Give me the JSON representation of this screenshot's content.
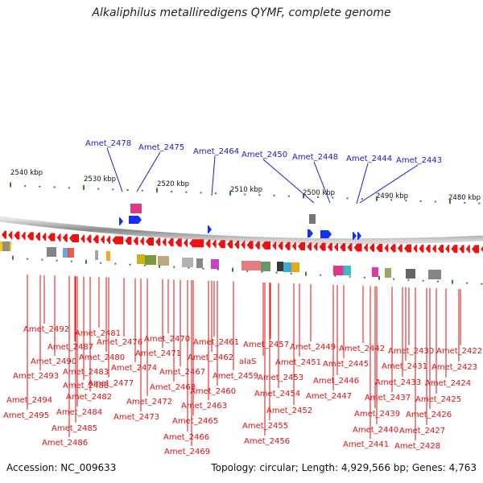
{
  "title": "Alkaliphilus metalliredigens QYMF, complete genome",
  "footer": {
    "accession": "Accession: NC_009633",
    "stats": "Topology: circular; Length: 4,929,566 bp; Genes: 4,763"
  },
  "colors": {
    "forward_label": "#1a1acc",
    "reverse_label": "#dd1111",
    "forward_gene": "#1133ee",
    "reverse_gene": "#ee1111",
    "tick": "#2a8a2a",
    "backbone": "#8a8a8a"
  },
  "kbp_labels": [
    "2540 kbp",
    "2530 kbp",
    "2520 kbp",
    "2510 kbp",
    "2500 kbp",
    "2490 kbp",
    "2480 kbp"
  ],
  "forward_labels": [
    "Amet_2478",
    "Amet_2475",
    "Amet_2464",
    "Amet_2450",
    "Amet_2448",
    "Amet_2444",
    "Amet_2443"
  ],
  "reverse_labels": [
    "Amet_2492",
    "Amet_2490",
    "Amet_2493",
    "Amet_2494",
    "Amet_2495",
    "Amet_2487",
    "Amet_2488",
    "Amet_2485",
    "Amet_2486",
    "Amet_2484",
    "Amet_2481",
    "Amet_2480",
    "Amet_2483",
    "Amet_2482",
    "Amet_2476",
    "Amet_2477",
    "Amet_2474",
    "Amet_2473",
    "Amet_2472",
    "Amet_2470",
    "Amet_2471",
    "Amet_2467",
    "Amet_2468",
    "Amet_2469",
    "Amet_2461",
    "Amet_2462",
    "Amet_2463",
    "Amet_2465",
    "Amet_2466",
    "Amet_2460",
    "Amet_2459",
    "alaS",
    "Amet_2457",
    "Amet_2453",
    "Amet_2454",
    "Amet_2455",
    "Amet_2456",
    "Amet_2451",
    "Amet_2452",
    "Amet_2449",
    "Amet_2446",
    "Amet_2447",
    "Amet_2445",
    "Amet_2442",
    "Amet_2437",
    "Amet_2439",
    "Amet_2440",
    "Amet_2441",
    "Amet_2430",
    "Amet_2431",
    "Amet_2433",
    "Amet_2425",
    "Amet_2426",
    "Amet_2427",
    "Amet_2428",
    "Amet_2422",
    "Amet_2423",
    "Amet_2424"
  ]
}
